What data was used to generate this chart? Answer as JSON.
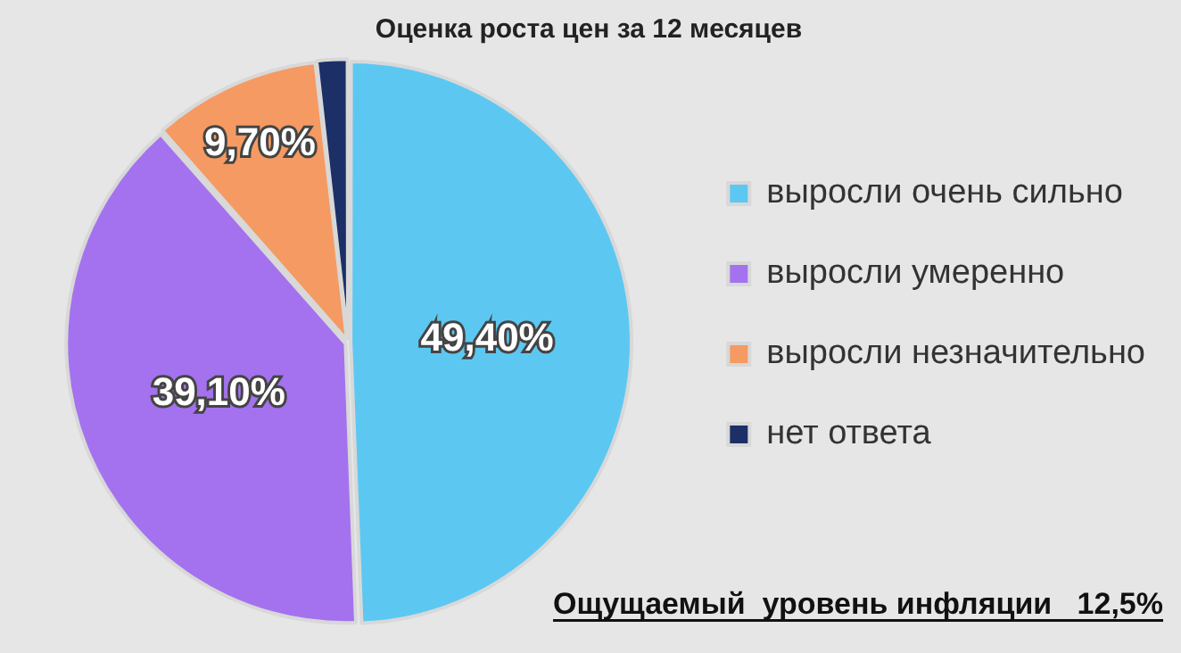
{
  "chart_data": {
    "type": "pie",
    "title": "Оценка роста цен за 12 месяцев",
    "categories": [
      "выросли очень сильно",
      "выросли умеренно",
      "выросли незначительно",
      "нет ответа"
    ],
    "values": [
      49.4,
      39.1,
      9.7,
      1.8
    ],
    "colors": [
      "#5cc8f2",
      "#a472ee",
      "#f59a62",
      "#1c2f66"
    ],
    "value_labels": [
      "49,40%",
      "39,10%",
      "9,70%",
      null
    ],
    "legend": "right",
    "annotations": [
      "Ощущаемый  уровень инфляции   12,5%"
    ]
  }
}
